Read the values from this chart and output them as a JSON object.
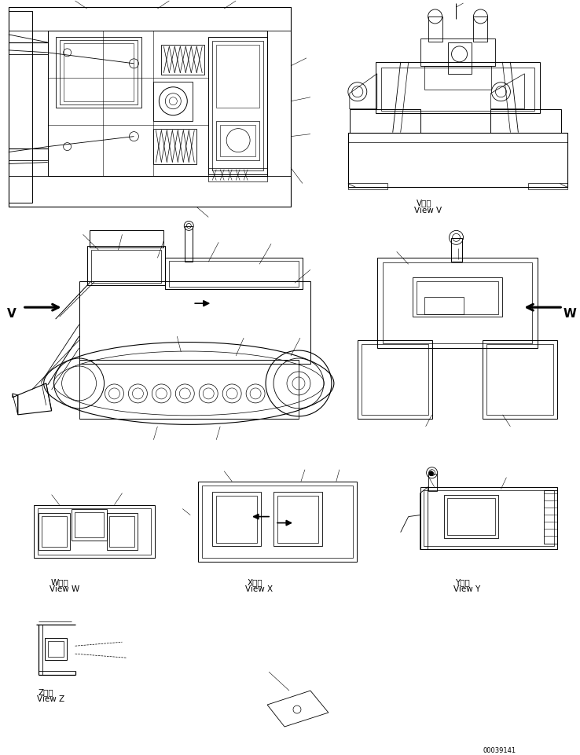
{
  "bg_color": "#ffffff",
  "line_color": "#000000",
  "fig_width": 7.38,
  "fig_height": 9.62,
  "doc_number": "00039141",
  "view_V_jp": "V　視",
  "view_V_en": "View V",
  "view_W_jp": "W　視",
  "view_W_en": "View W",
  "view_X_jp": "X　視",
  "view_X_en": "View X",
  "view_Y_jp": "Y　視",
  "view_Y_en": "View Y",
  "view_Z_jp": "Z　視",
  "view_Z_en": "View Z",
  "arrow_V": "V",
  "arrow_W": "W"
}
